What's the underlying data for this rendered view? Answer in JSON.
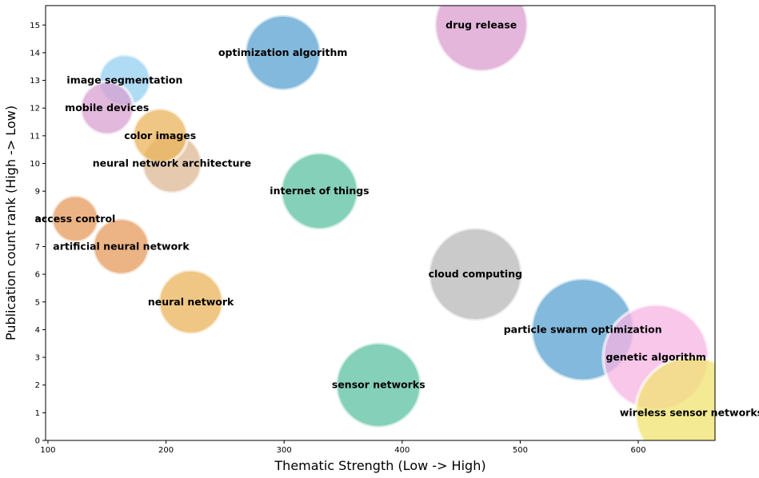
{
  "chart_data": {
    "type": "scatter",
    "title": "",
    "xlabel": "Thematic Strength (Low -> High)",
    "ylabel": "Publication count rank (High -> Low)",
    "xlim": [
      98,
      665
    ],
    "ylim": [
      0,
      15.7
    ],
    "xticks": [
      100,
      200,
      300,
      400,
      500,
      600
    ],
    "yticks": [
      0,
      1,
      2,
      3,
      4,
      5,
      6,
      7,
      8,
      9,
      10,
      11,
      12,
      13,
      14,
      15
    ],
    "grid": false,
    "points": [
      {
        "label": "access control",
        "x": 123,
        "y": 8,
        "r": 29,
        "color": "#e59a5c"
      },
      {
        "label": "artificial neural network",
        "x": 162,
        "y": 7,
        "r": 35,
        "color": "#e59a5c"
      },
      {
        "label": "neural network",
        "x": 221,
        "y": 5,
        "r": 40,
        "color": "#e9b35a"
      },
      {
        "label": "neural network architecture",
        "x": 205,
        "y": 10,
        "r": 37,
        "color": "#deb896"
      },
      {
        "label": "color images",
        "x": 195,
        "y": 11,
        "r": 34,
        "color": "#e9b35a"
      },
      {
        "label": "image segmentation",
        "x": 165,
        "y": 13,
        "r": 32,
        "color": "#94cff2"
      },
      {
        "label": "mobile devices",
        "x": 150,
        "y": 12,
        "r": 33,
        "color": "#d8a0d0"
      },
      {
        "label": "optimization algorithm",
        "x": 299,
        "y": 14,
        "r": 47,
        "color": "#5aa2d0"
      },
      {
        "label": "internet of things",
        "x": 330,
        "y": 9,
        "r": 48,
        "color": "#5cc0a0"
      },
      {
        "label": "sensor networks",
        "x": 380,
        "y": 2,
        "r": 53,
        "color": "#5cc0a0"
      },
      {
        "label": "cloud computing",
        "x": 462,
        "y": 6,
        "r": 58,
        "color": "#b8b8b8"
      },
      {
        "label": "drug release",
        "x": 467,
        "y": 15,
        "r": 58,
        "color": "#db9ecf"
      },
      {
        "label": "particle swarm optimization",
        "x": 553,
        "y": 4,
        "r": 64,
        "color": "#5aa2d0"
      },
      {
        "label": "genetic algorithm",
        "x": 615,
        "y": 3,
        "r": 66,
        "color": "#f7b4e3"
      },
      {
        "label": "wireless sensor networks",
        "x": 645,
        "y": 1,
        "r": 70,
        "color": "#f0e370"
      }
    ]
  }
}
